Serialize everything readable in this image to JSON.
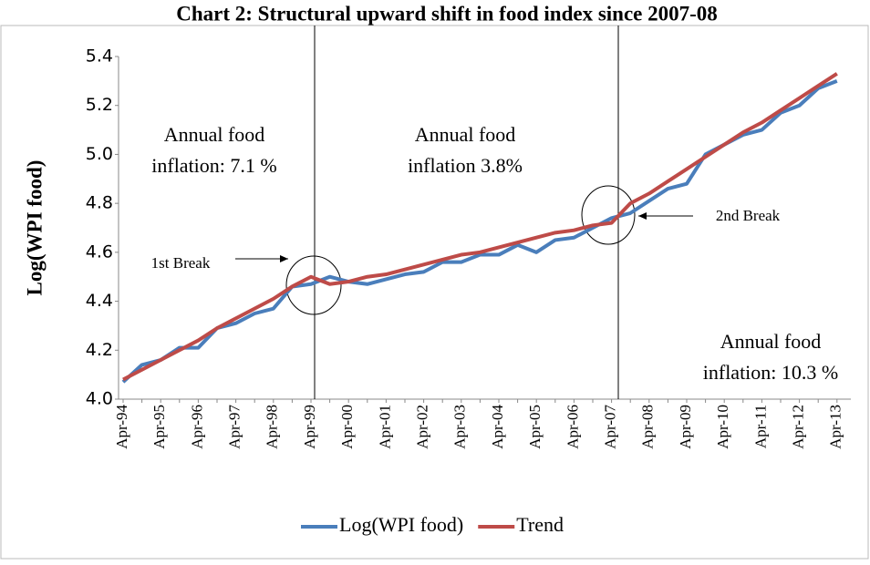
{
  "chart_data": {
    "type": "line",
    "title": "Chart 2: Structural upward shift in food index since 2007-08",
    "y_label": "Log(WPI food)",
    "categories": [
      "Apr-94",
      null,
      "Apr-95",
      null,
      "Apr-96",
      null,
      "Apr-97",
      null,
      "Apr-98",
      null,
      "Apr-99",
      null,
      "Apr-00",
      null,
      "Apr-01",
      null,
      "Apr-02",
      null,
      "Apr-03",
      null,
      "Apr-04",
      null,
      "Apr-05",
      null,
      "Apr-06",
      null,
      "Apr-07",
      null,
      "Apr-08",
      null,
      "Apr-09",
      null,
      "Apr-10",
      null,
      "Apr-11",
      null,
      "Apr-12",
      null,
      "Apr-13"
    ],
    "series": [
      {
        "name": "Log(WPI food)",
        "color": "#4a7ebb",
        "values": [
          4.07,
          4.14,
          4.16,
          4.21,
          4.21,
          4.29,
          4.31,
          4.35,
          4.37,
          4.46,
          4.47,
          4.5,
          4.48,
          4.47,
          4.49,
          4.51,
          4.52,
          4.56,
          4.56,
          4.59,
          4.59,
          4.63,
          4.6,
          4.65,
          4.66,
          4.7,
          4.74,
          4.76,
          4.81,
          4.86,
          4.88,
          5.0,
          5.04,
          5.08,
          5.1,
          5.17,
          5.2,
          5.27,
          5.3
        ]
      },
      {
        "name": "Trend",
        "color": "#be4b48",
        "values": [
          4.08,
          4.12,
          4.16,
          4.2,
          4.24,
          4.29,
          4.33,
          4.37,
          4.41,
          4.46,
          4.5,
          4.47,
          4.48,
          4.5,
          4.51,
          4.53,
          4.55,
          4.57,
          4.59,
          4.6,
          4.62,
          4.64,
          4.66,
          4.68,
          4.69,
          4.71,
          4.72,
          4.8,
          4.84,
          4.89,
          4.94,
          4.99,
          5.04,
          5.09,
          5.13,
          5.18,
          5.23,
          5.28,
          5.33
        ]
      }
    ],
    "ylim": [
      4.0,
      5.4
    ],
    "yticks": [
      {
        "value": 4.0,
        "label": "4.0"
      },
      4.2,
      4.4,
      4.6,
      4.8,
      {
        "value": 5.0,
        "label": "5.0"
      },
      5.2,
      5.4
    ],
    "annotations": [
      {
        "lines": [
          "Annual food",
          "inflation: 7.1 %"
        ]
      },
      {
        "lines": [
          "Annual food",
          "inflation 3.8%"
        ]
      },
      {
        "lines": [
          "Annual food",
          "inflation: 10.3 %"
        ]
      },
      {
        "lines": [
          "1st Break"
        ]
      },
      {
        "lines": [
          "2nd Break"
        ]
      }
    ]
  }
}
